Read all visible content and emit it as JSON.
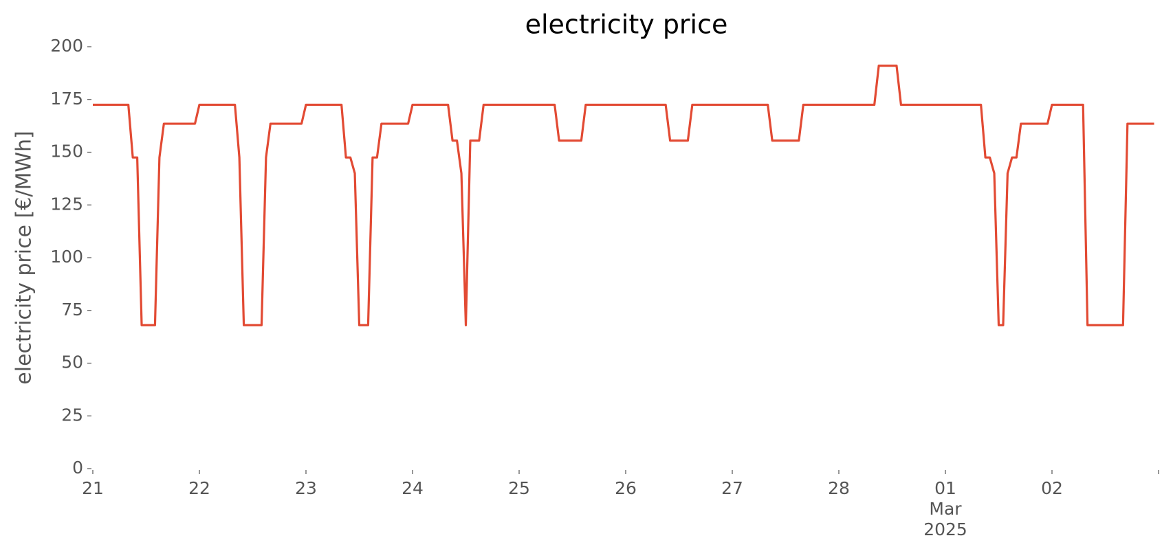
{
  "chart_data": {
    "type": "line",
    "title": "electricity price",
    "ylabel": "electricity price [€/MWh]",
    "x": [
      "2025-02-21T00:00",
      "2025-02-21T08:00",
      "2025-02-21T09:00",
      "2025-02-21T10:00",
      "2025-02-21T11:00",
      "2025-02-21T14:00",
      "2025-02-21T15:00",
      "2025-02-21T16:00",
      "2025-02-21T23:00",
      "2025-02-22T00:00",
      "2025-02-22T08:00",
      "2025-02-22T09:00",
      "2025-02-22T10:00",
      "2025-02-22T14:00",
      "2025-02-22T15:00",
      "2025-02-22T16:00",
      "2025-02-22T23:00",
      "2025-02-23T00:00",
      "2025-02-23T08:00",
      "2025-02-23T09:00",
      "2025-02-23T10:00",
      "2025-02-23T11:00",
      "2025-02-23T12:00",
      "2025-02-23T14:00",
      "2025-02-23T15:00",
      "2025-02-23T16:00",
      "2025-02-23T17:00",
      "2025-02-23T23:00",
      "2025-02-24T00:00",
      "2025-02-24T08:00",
      "2025-02-24T09:00",
      "2025-02-24T10:00",
      "2025-02-24T11:00",
      "2025-02-24T12:00",
      "2025-02-24T13:00",
      "2025-02-24T15:00",
      "2025-02-24T16:00",
      "2025-02-25T08:00",
      "2025-02-25T09:00",
      "2025-02-25T14:00",
      "2025-02-25T15:00",
      "2025-02-26T09:00",
      "2025-02-26T10:00",
      "2025-02-26T14:00",
      "2025-02-26T15:00",
      "2025-02-27T08:00",
      "2025-02-27T09:00",
      "2025-02-27T15:00",
      "2025-02-27T16:00",
      "2025-02-28T08:00",
      "2025-02-28T09:00",
      "2025-02-28T13:00",
      "2025-02-28T14:00",
      "2025-03-01T08:00",
      "2025-03-01T09:00",
      "2025-03-01T10:00",
      "2025-03-01T11:00",
      "2025-03-01T12:00",
      "2025-03-01T13:00",
      "2025-03-01T14:00",
      "2025-03-01T15:00",
      "2025-03-01T16:00",
      "2025-03-01T17:00",
      "2025-03-01T23:00",
      "2025-03-02T00:00",
      "2025-03-02T07:00",
      "2025-03-02T08:00",
      "2025-03-02T16:00",
      "2025-03-02T17:00",
      "2025-03-02T23:00"
    ],
    "series": [
      {
        "name": "electricity price",
        "color": "#e24a33",
        "values": [
          172.5,
          172.5,
          147.5,
          147.5,
          68,
          68,
          147.5,
          163.5,
          163.5,
          172.5,
          172.5,
          147.5,
          68,
          68,
          147.5,
          163.5,
          163.5,
          172.5,
          172.5,
          147.5,
          147.5,
          140,
          68,
          68,
          147.5,
          147.5,
          163.5,
          163.5,
          172.5,
          172.5,
          155.5,
          155.5,
          140,
          68,
          155.5,
          155.5,
          172.5,
          172.5,
          155.5,
          155.5,
          172.5,
          172.5,
          155.5,
          155.5,
          172.5,
          172.5,
          155.5,
          155.5,
          172.5,
          172.5,
          191,
          191,
          172.5,
          172.5,
          147.5,
          147.5,
          140,
          68,
          68,
          140,
          147.5,
          147.5,
          163.5,
          163.5,
          172.5,
          172.5,
          68,
          68,
          163.5,
          163.5
        ]
      }
    ],
    "xlim": [
      "2025-02-21",
      "2025-03-03"
    ],
    "xticks": [
      {
        "value": "2025-02-21",
        "label": "21"
      },
      {
        "value": "2025-02-22",
        "label": "22"
      },
      {
        "value": "2025-02-23",
        "label": "23"
      },
      {
        "value": "2025-02-24",
        "label": "24"
      },
      {
        "value": "2025-02-25",
        "label": "25"
      },
      {
        "value": "2025-02-26",
        "label": "26"
      },
      {
        "value": "2025-02-27",
        "label": "27"
      },
      {
        "value": "2025-02-28",
        "label": "28"
      },
      {
        "value": "2025-03-01",
        "label": "01\nMar\n2025"
      },
      {
        "value": "2025-03-02",
        "label": "02"
      },
      {
        "value": "2025-03-03",
        "label": null
      }
    ],
    "ylim": [
      0,
      200
    ],
    "yticks": [
      0,
      25,
      50,
      75,
      100,
      125,
      150,
      175,
      200
    ]
  }
}
